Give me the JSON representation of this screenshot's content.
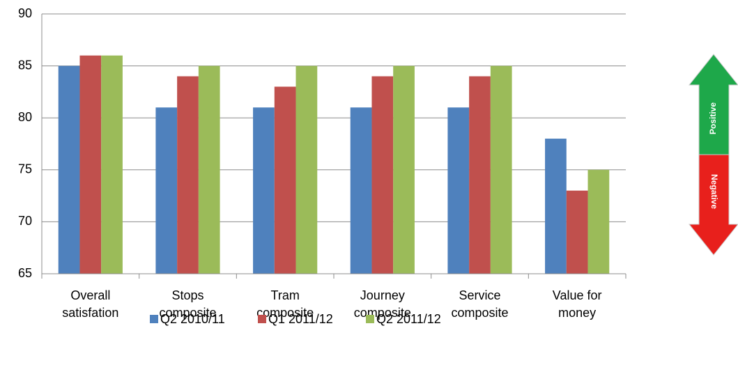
{
  "chart_data": {
    "type": "bar",
    "categories": [
      [
        "Overall",
        "satisfation"
      ],
      [
        "Stops",
        "composite"
      ],
      [
        "Tram",
        "composite"
      ],
      [
        "Journey",
        "composite"
      ],
      [
        "Service",
        "composite"
      ],
      [
        "Value for",
        "money"
      ]
    ],
    "series": [
      {
        "name": "Q2 2010/11",
        "color": "#4f81bd",
        "values": [
          85,
          81,
          81,
          81,
          81,
          78
        ]
      },
      {
        "name": "Q1 2011/12",
        "color": "#c0504d",
        "values": [
          86,
          84,
          83,
          84,
          84,
          73
        ]
      },
      {
        "name": "Q2 2011/12",
        "color": "#9bbb59",
        "values": [
          86,
          85,
          85,
          85,
          85,
          75
        ]
      }
    ],
    "ylim": [
      65,
      90
    ],
    "yticks": [
      65,
      70,
      75,
      80,
      85,
      90
    ],
    "grid": true,
    "legend": "bottom",
    "annotations": [
      "Positive",
      "Negative"
    ]
  }
}
